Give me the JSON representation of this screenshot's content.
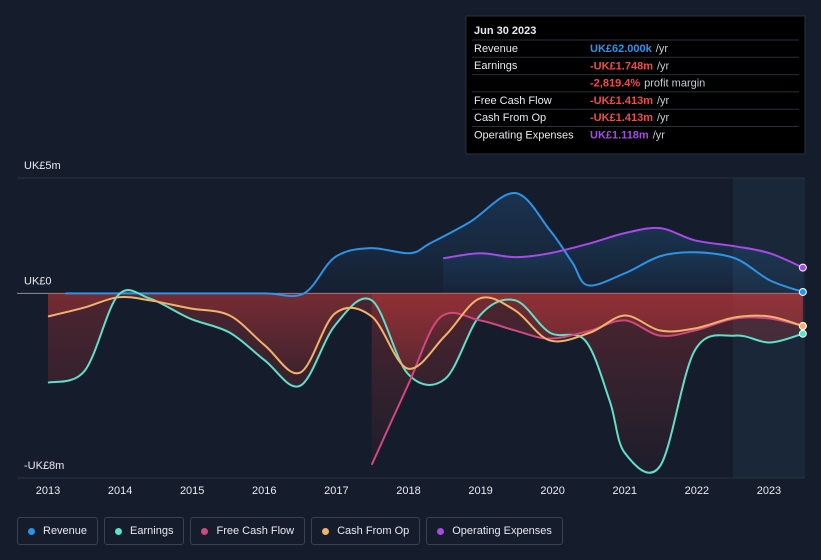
{
  "chart_data": {
    "type": "line",
    "xlim": [
      2012.57,
      2023.5
    ],
    "xticks": [
      2013,
      2014,
      2015,
      2016,
      2017,
      2018,
      2019,
      2020,
      2021,
      2022,
      2023
    ],
    "ylim": [
      -8,
      5
    ],
    "yticks": [
      {
        "value": -8,
        "label": "-UK£8m"
      },
      {
        "value": 0,
        "label": "UK£0"
      },
      {
        "value": 5,
        "label": "UK£5m"
      }
    ],
    "forecast_from": 2022.5,
    "series": [
      {
        "name": "Revenue",
        "color": "#2e93e6",
        "x": [
          2013.24,
          2014,
          2015,
          2016,
          2016.55,
          2016.98,
          2017.47,
          2018.02,
          2018.3,
          2018.85,
          2019.48,
          2019.96,
          2020.27,
          2020.49,
          2021.0,
          2021.49,
          2021.97,
          2022.53,
          2023.01,
          2023.47
        ],
        "values": [
          0,
          0,
          0,
          0,
          0,
          1.57,
          1.96,
          1.74,
          2.17,
          3.09,
          4.35,
          2.74,
          1.35,
          0.35,
          0.87,
          1.61,
          1.78,
          1.52,
          0.57,
          0.062
        ]
      },
      {
        "name": "Earnings",
        "color": "#5fe0c8",
        "x": [
          2013,
          2013.51,
          2013.97,
          2014.41,
          2014.97,
          2015.52,
          2016.01,
          2016.5,
          2016.98,
          2017.49,
          2017.99,
          2018.51,
          2018.99,
          2019.48,
          2019.96,
          2020.45,
          2020.79,
          2021.0,
          2021.49,
          2021.97,
          2022.53,
          2023.01,
          2023.47
        ],
        "values": [
          -3.87,
          -3.35,
          -0.09,
          -0.22,
          -1.09,
          -1.7,
          -2.91,
          -4.0,
          -1.39,
          -0.3,
          -3.48,
          -3.7,
          -0.96,
          -0.3,
          -1.7,
          -2.04,
          -4.65,
          -6.91,
          -7.48,
          -2.48,
          -1.83,
          -2.13,
          -1.748
        ]
      },
      {
        "name": "Free Cash Flow",
        "color": "#d1487e",
        "x": [
          2017.49,
          2017.99,
          2018.44,
          2018.99,
          2019.48,
          2019.96,
          2020.52,
          2021.0,
          2021.49,
          2021.97,
          2022.53,
          2023.01,
          2023.47
        ],
        "values": [
          -7.43,
          -4.0,
          -1.04,
          -1.17,
          -1.61,
          -1.96,
          -1.61,
          -1.17,
          -1.83,
          -1.61,
          -1.09,
          -1.09,
          -1.413
        ]
      },
      {
        "name": "Cash From Op",
        "color": "#f0b36c",
        "x": [
          2013,
          2013.51,
          2013.97,
          2014.41,
          2014.97,
          2015.52,
          2016.01,
          2016.5,
          2016.98,
          2017.49,
          2017.99,
          2018.51,
          2018.99,
          2019.48,
          2019.96,
          2020.52,
          2021.0,
          2021.49,
          2021.97,
          2022.53,
          2023.01,
          2023.47
        ],
        "values": [
          -1.0,
          -0.61,
          -0.17,
          -0.3,
          -0.65,
          -0.96,
          -2.26,
          -3.43,
          -0.87,
          -1.0,
          -3.26,
          -1.83,
          -0.22,
          -0.74,
          -2.04,
          -1.7,
          -0.96,
          -1.61,
          -1.52,
          -1.04,
          -1.0,
          -1.413
        ]
      },
      {
        "name": "Operating Expenses",
        "color": "#a64ae8",
        "x": [
          2018.48,
          2018.99,
          2019.48,
          2019.96,
          2020.52,
          2021.0,
          2021.49,
          2021.97,
          2022.53,
          2023.01,
          2023.47
        ],
        "values": [
          1.52,
          1.74,
          1.57,
          1.74,
          2.17,
          2.61,
          2.83,
          2.3,
          2.04,
          1.74,
          1.118
        ]
      }
    ],
    "tooltip": {
      "date": "Jun 30 2023",
      "rows": [
        {
          "label": "Revenue",
          "value": "UK£62.000k",
          "unit": "/yr",
          "color": "#2e93e6"
        },
        {
          "label": "Earnings",
          "value": "-UK£1.748m",
          "unit": "/yr",
          "color": "#f04b4b"
        },
        {
          "label": "",
          "value": "-2,819.4%",
          "unit": "profit margin",
          "color": "#f04b4b"
        },
        {
          "label": "Free Cash Flow",
          "value": "-UK£1.413m",
          "unit": "/yr",
          "color": "#f04b4b"
        },
        {
          "label": "Cash From Op",
          "value": "-UK£1.413m",
          "unit": "/yr",
          "color": "#f04b4b"
        },
        {
          "label": "Operating Expenses",
          "value": "UK£1.118m",
          "unit": "/yr",
          "color": "#a64ae8"
        }
      ]
    }
  }
}
